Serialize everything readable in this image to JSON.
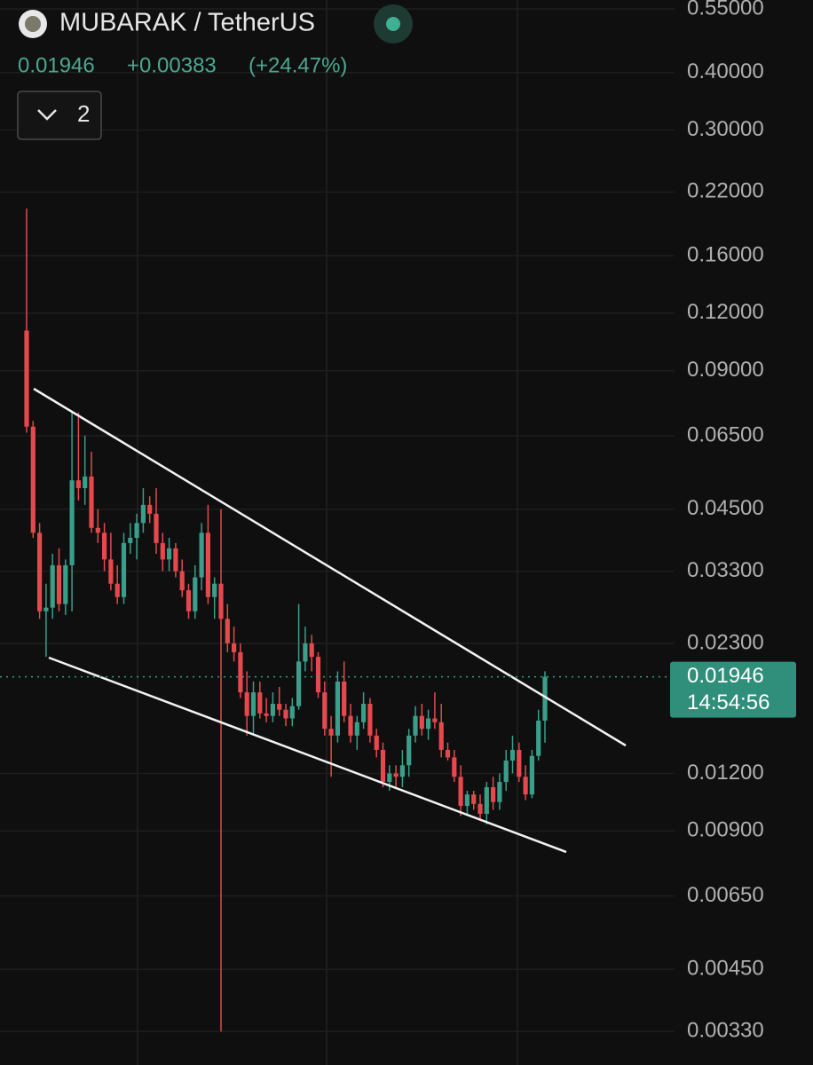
{
  "header": {
    "symbol": "MUBARAK / TetherUS",
    "change": "+0.00383",
    "change_pct": "(+24.47%)",
    "indicators": "2"
  },
  "chart_data": {
    "type": "candlestick",
    "log_scale": true,
    "grid": true,
    "up_color": "#3a9e8a",
    "down_color": "#e5484d",
    "ylim": [
      0.00279,
      0.575
    ],
    "yticks": [
      {
        "value": 0.55,
        "label": "0.55000"
      },
      {
        "value": 0.4,
        "label": "0.40000"
      },
      {
        "value": 0.3,
        "label": "0.30000"
      },
      {
        "value": 0.22,
        "label": "0.22000"
      },
      {
        "value": 0.16,
        "label": "0.16000"
      },
      {
        "value": 0.12,
        "label": "0.12000"
      },
      {
        "value": 0.09,
        "label": "0.09000"
      },
      {
        "value": 0.065,
        "label": "0.06500"
      },
      {
        "value": 0.045,
        "label": "0.04500"
      },
      {
        "value": 0.033,
        "label": "0.03300"
      },
      {
        "value": 0.023,
        "label": "0.02300"
      },
      {
        "value": 0.012,
        "label": "0.01200"
      },
      {
        "value": 0.009,
        "label": "0.00900"
      },
      {
        "value": 0.0065,
        "label": "0.00650"
      },
      {
        "value": 0.0045,
        "label": "0.00450"
      },
      {
        "value": 0.0033,
        "label": "0.00330"
      }
    ],
    "last_price": {
      "value": 0.01946,
      "label": "0.01946"
    },
    "countdown": "14:54:56",
    "open": [
      0.11,
      0.068,
      0.04,
      0.027,
      0.0275,
      0.034,
      0.028,
      0.034,
      0.052,
      0.05,
      0.053,
      0.041,
      0.04,
      0.035,
      0.031,
      0.029,
      0.038,
      0.039,
      0.042,
      0.046,
      0.044,
      0.038,
      0.035,
      0.037,
      0.033,
      0.03,
      0.027,
      0.032,
      0.04,
      0.029,
      0.031,
      0.026,
      0.023,
      0.022,
      0.018,
      0.016,
      0.018,
      0.0162,
      0.016,
      0.017,
      0.0165,
      0.0158,
      0.0168,
      0.021,
      0.023,
      0.0215,
      0.018,
      0.015,
      0.0145,
      0.019,
      0.016,
      0.0145,
      0.0155,
      0.017,
      0.0145,
      0.0135,
      0.0115,
      0.012,
      0.0118,
      0.0125,
      0.0145,
      0.016,
      0.015,
      0.0158,
      0.0155,
      0.0135,
      0.013,
      0.0118,
      0.0102,
      0.0108,
      0.0103,
      0.0098,
      0.0112,
      0.0104,
      0.0115,
      0.0128,
      0.0135,
      0.0118,
      0.0108,
      0.0131,
      0.01563
    ],
    "high": [
      0.2025,
      0.07,
      0.042,
      0.031,
      0.036,
      0.037,
      0.035,
      0.073,
      0.073,
      0.065,
      0.06,
      0.045,
      0.042,
      0.04,
      0.034,
      0.04,
      0.042,
      0.044,
      0.05,
      0.048,
      0.05,
      0.04,
      0.039,
      0.038,
      0.035,
      0.031,
      0.034,
      0.042,
      0.046,
      0.032,
      0.045,
      0.028,
      0.025,
      0.023,
      0.02,
      0.019,
      0.019,
      0.0175,
      0.018,
      0.0185,
      0.017,
      0.0175,
      0.028,
      0.025,
      0.024,
      0.022,
      0.019,
      0.016,
      0.02,
      0.021,
      0.017,
      0.016,
      0.018,
      0.0175,
      0.015,
      0.014,
      0.0125,
      0.0125,
      0.0135,
      0.015,
      0.0168,
      0.017,
      0.0165,
      0.018,
      0.017,
      0.014,
      0.0135,
      0.0125,
      0.011,
      0.011,
      0.0108,
      0.0115,
      0.0118,
      0.012,
      0.0135,
      0.0145,
      0.014,
      0.0125,
      0.0135,
      0.0165,
      0.02
    ],
    "low": [
      0.066,
      0.039,
      0.026,
      0.0215,
      0.026,
      0.027,
      0.0265,
      0.027,
      0.047,
      0.046,
      0.04,
      0.038,
      0.033,
      0.03,
      0.028,
      0.028,
      0.036,
      0.035,
      0.04,
      0.042,
      0.036,
      0.033,
      0.033,
      0.032,
      0.029,
      0.026,
      0.026,
      0.03,
      0.028,
      0.026,
      0.0033,
      0.022,
      0.021,
      0.0175,
      0.0145,
      0.0145,
      0.0158,
      0.0155,
      0.0155,
      0.016,
      0.0152,
      0.0152,
      0.0165,
      0.02,
      0.02,
      0.0175,
      0.0145,
      0.0118,
      0.014,
      0.0155,
      0.014,
      0.0135,
      0.015,
      0.014,
      0.013,
      0.0112,
      0.011,
      0.0112,
      0.0112,
      0.0118,
      0.014,
      0.0145,
      0.0142,
      0.015,
      0.013,
      0.0128,
      0.0115,
      0.0097,
      0.0098,
      0.01,
      0.0095,
      0.0093,
      0.01,
      0.01,
      0.011,
      0.012,
      0.0115,
      0.0105,
      0.0106,
      0.0128,
      0.014
    ],
    "close": [
      0.068,
      0.04,
      0.027,
      0.0275,
      0.034,
      0.028,
      0.034,
      0.052,
      0.05,
      0.053,
      0.041,
      0.04,
      0.035,
      0.031,
      0.029,
      0.038,
      0.039,
      0.042,
      0.046,
      0.044,
      0.038,
      0.035,
      0.037,
      0.033,
      0.03,
      0.027,
      0.032,
      0.04,
      0.029,
      0.031,
      0.026,
      0.023,
      0.022,
      0.018,
      0.016,
      0.018,
      0.0162,
      0.016,
      0.017,
      0.0165,
      0.0158,
      0.0168,
      0.021,
      0.023,
      0.0215,
      0.018,
      0.015,
      0.0145,
      0.019,
      0.016,
      0.0145,
      0.0155,
      0.017,
      0.0145,
      0.0135,
      0.0115,
      0.012,
      0.0118,
      0.0125,
      0.0145,
      0.016,
      0.015,
      0.0158,
      0.0155,
      0.0135,
      0.013,
      0.0118,
      0.0102,
      0.0108,
      0.0103,
      0.0098,
      0.0112,
      0.0104,
      0.0115,
      0.0128,
      0.0135,
      0.0118,
      0.0108,
      0.0131,
      0.01563,
      0.01946
    ]
  }
}
